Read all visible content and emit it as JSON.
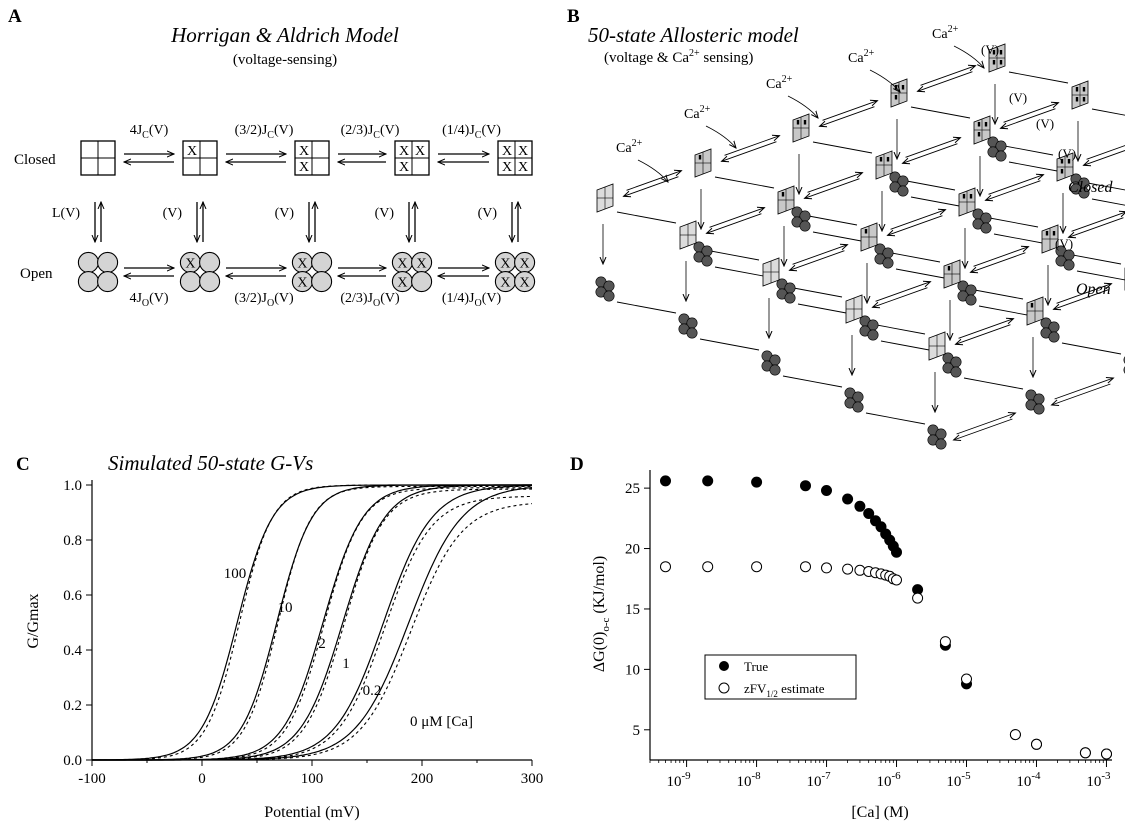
{
  "panel_a": {
    "letter": "A",
    "title": "Horrigan & Aldrich Model",
    "subtitle": "(voltage-sensing)",
    "closed_label": "Closed",
    "open_label": "Open",
    "lv_label": "L(V)",
    "v_label": "(V)",
    "top_rates": [
      "4J",
      "(3/2)J",
      "(2/3)J",
      "(1/4)J"
    ],
    "bottom_rates": [
      "4J",
      "(3/2)J",
      "(2/3)J",
      "(1/4)J"
    ],
    "rate_sub_closed": "C",
    "rate_sub_open": "O",
    "rate_arg": "(V)",
    "active_marker": "X"
  },
  "panel_b": {
    "letter": "B",
    "title": "50-state Allosteric model",
    "subtitle_pre": "(voltage & Ca",
    "subtitle_sup": "2+",
    "subtitle_post": " sensing)",
    "ca": "Ca",
    "ca_sup": "2+",
    "v_label": "(V)",
    "closed_label": "Closed",
    "open_label": "Open"
  },
  "panel_c": {
    "letter": "C",
    "title": "Simulated 50-state G-Vs",
    "curve_labels": [
      "100",
      "10",
      "2",
      "1",
      "0.2"
    ],
    "last_curve_label": "0 μM [Ca]",
    "chart_data": {
      "type": "line",
      "xlabel": "Potential (mV)",
      "ylabel": "G/Gmax",
      "xlim": [
        -100,
        300
      ],
      "ylim": [
        0,
        1
      ],
      "x_ticks": [
        "-100",
        "0",
        "100",
        "200",
        "300"
      ],
      "y_ticks": [
        "0.0",
        "0.2",
        "0.4",
        "0.6",
        "0.8",
        "1.0"
      ],
      "series": [
        {
          "name": "100",
          "v_half": 32,
          "slope": 16,
          "fit_v_half": 34,
          "fit_slope": 15,
          "gmax_fit": 1.0
        },
        {
          "name": "10",
          "v_half": 68,
          "slope": 16,
          "fit_v_half": 69,
          "fit_slope": 15,
          "gmax_fit": 0.995
        },
        {
          "name": "2",
          "v_half": 110,
          "slope": 18,
          "fit_v_half": 111,
          "fit_slope": 17,
          "gmax_fit": 0.99
        },
        {
          "name": "1",
          "v_half": 128,
          "slope": 19,
          "fit_v_half": 129,
          "fit_slope": 18,
          "gmax_fit": 0.985
        },
        {
          "name": "0.2",
          "v_half": 165,
          "slope": 22,
          "fit_v_half": 166,
          "fit_slope": 21,
          "gmax_fit": 0.96
        },
        {
          "name": "0",
          "v_half": 188,
          "slope": 24,
          "fit_v_half": 190,
          "fit_slope": 23,
          "gmax_fit": 0.94
        }
      ]
    }
  },
  "panel_d": {
    "letter": "D",
    "legend": {
      "true": "True",
      "estimate_pre": "zFV",
      "estimate_sub": "1/2",
      "estimate_post": " estimate"
    },
    "ylabel_pre": "ΔG(0)",
    "ylabel_sub": "o-c",
    "ylabel_post": " (KJ/mol)",
    "xlabel": "[Ca] (M)",
    "x_tick_base": "10",
    "x_tick_exps": [
      "-9",
      "-8",
      "-7",
      "-6",
      "-5",
      "-4",
      "-3"
    ],
    "y_ticks": [
      "5",
      "10",
      "15",
      "20",
      "25"
    ],
    "chart_data": {
      "type": "scatter",
      "x_scale": "log",
      "xlim": [
        3e-10,
        0.0012
      ],
      "ylim": [
        2.5,
        26.5
      ],
      "series": [
        {
          "name": "True",
          "marker": "filled",
          "x": [
            5e-10,
            2e-09,
            1e-08,
            5e-08,
            1e-07,
            2e-07,
            3e-07,
            4e-07,
            5e-07,
            6e-07,
            7e-07,
            8e-07,
            9e-07,
            1e-06,
            2e-06,
            5e-06,
            1e-05,
            5e-05,
            0.0001,
            0.0005,
            0.001
          ],
          "y": [
            25.6,
            25.6,
            25.5,
            25.2,
            24.8,
            24.1,
            23.5,
            22.9,
            22.3,
            21.8,
            21.2,
            20.7,
            20.2,
            19.7,
            16.6,
            12.0,
            8.8,
            4.6,
            3.8,
            3.1,
            3.0
          ]
        },
        {
          "name": "zFV1/2 estimate",
          "marker": "open",
          "x": [
            5e-10,
            2e-09,
            1e-08,
            5e-08,
            1e-07,
            2e-07,
            3e-07,
            4e-07,
            5e-07,
            6e-07,
            7e-07,
            8e-07,
            9e-07,
            1e-06,
            2e-06,
            5e-06,
            1e-05,
            5e-05,
            0.0001,
            0.0005,
            0.001
          ],
          "y": [
            18.5,
            18.5,
            18.5,
            18.5,
            18.4,
            18.3,
            18.2,
            18.1,
            18.0,
            17.9,
            17.8,
            17.7,
            17.5,
            17.4,
            15.9,
            12.3,
            9.2,
            4.6,
            3.8,
            3.1,
            3.0
          ]
        }
      ]
    }
  }
}
